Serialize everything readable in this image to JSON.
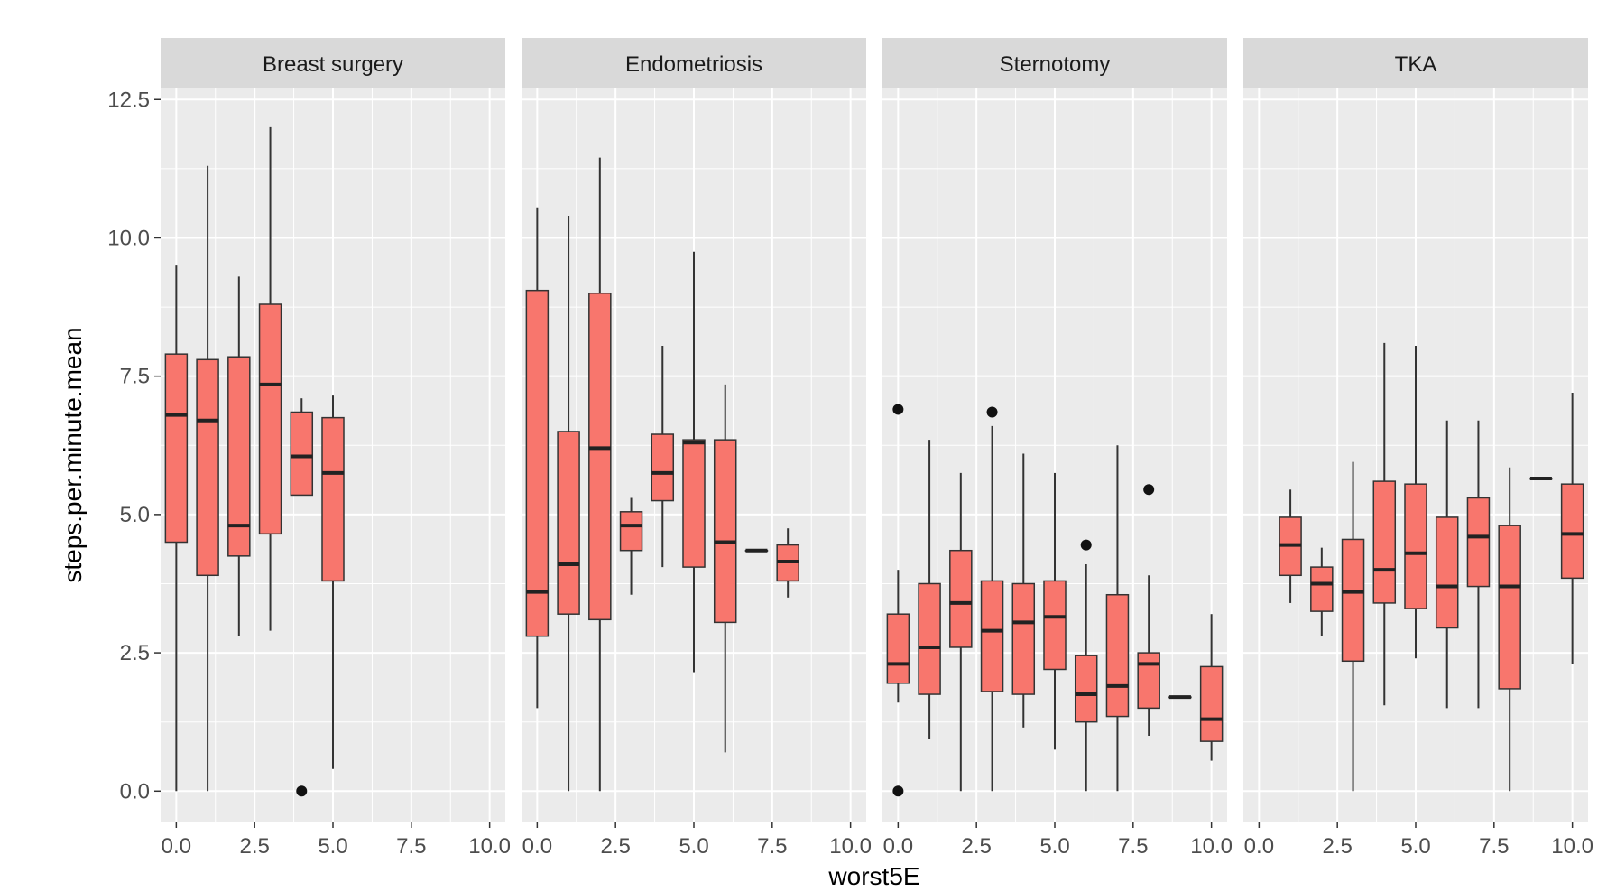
{
  "chart_data": {
    "type": "boxplot",
    "xlabel": "worst5E",
    "ylabel": "steps.per.minute.mean",
    "xlim": [
      -0.5,
      10.5
    ],
    "ylim": [
      -0.55,
      12.7
    ],
    "x_ticks": [
      0,
      2.5,
      5,
      7.5,
      10
    ],
    "x_tick_labels": [
      "0.0",
      "2.5",
      "5.0",
      "7.5",
      "10.0"
    ],
    "y_ticks": [
      0,
      2.5,
      5,
      7.5,
      10,
      12.5
    ],
    "y_tick_labels": [
      "0.0",
      "2.5",
      "5.0",
      "7.5",
      "10.0",
      "12.5"
    ],
    "grid": true,
    "colors": {
      "box_fill": "#f8766d",
      "box_stroke": "#333333",
      "panel_bg": "#ebebeb",
      "strip_bg": "#d9d9d9",
      "grid": "#ffffff"
    },
    "panels": [
      {
        "name": "Breast surgery",
        "boxes": [
          {
            "x": 0,
            "low": 0.0,
            "q1": 4.5,
            "median": 6.8,
            "q3": 7.9,
            "high": 9.5,
            "outliers": []
          },
          {
            "x": 1,
            "low": 0.0,
            "q1": 3.9,
            "median": 6.7,
            "q3": 7.8,
            "high": 11.3,
            "outliers": []
          },
          {
            "x": 2,
            "low": 2.8,
            "q1": 4.25,
            "median": 4.8,
            "q3": 7.85,
            "high": 9.3,
            "outliers": []
          },
          {
            "x": 3,
            "low": 2.9,
            "q1": 4.65,
            "median": 7.35,
            "q3": 8.8,
            "high": 12.0,
            "outliers": []
          },
          {
            "x": 4,
            "low": 5.35,
            "q1": 5.35,
            "median": 6.05,
            "q3": 6.85,
            "high": 7.1,
            "outliers": [
              0.0
            ]
          },
          {
            "x": 5,
            "low": 0.4,
            "q1": 3.8,
            "median": 5.75,
            "q3": 6.75,
            "high": 7.15,
            "outliers": []
          }
        ]
      },
      {
        "name": "Endometriosis",
        "boxes": [
          {
            "x": 0,
            "low": 1.5,
            "q1": 2.8,
            "median": 3.6,
            "q3": 9.05,
            "high": 10.55,
            "outliers": []
          },
          {
            "x": 1,
            "low": 0.0,
            "q1": 3.2,
            "median": 4.1,
            "q3": 6.5,
            "high": 10.4,
            "outliers": []
          },
          {
            "x": 2,
            "low": 0.0,
            "q1": 3.1,
            "median": 6.2,
            "q3": 9.0,
            "high": 11.45,
            "outliers": []
          },
          {
            "x": 3,
            "low": 3.55,
            "q1": 4.35,
            "median": 4.8,
            "q3": 5.05,
            "high": 5.3,
            "outliers": []
          },
          {
            "x": 4,
            "low": 4.05,
            "q1": 5.25,
            "median": 5.75,
            "q3": 6.45,
            "high": 8.05,
            "outliers": []
          },
          {
            "x": 5,
            "low": 2.15,
            "q1": 4.05,
            "median": 6.3,
            "q3": 6.35,
            "high": 9.75,
            "outliers": []
          },
          {
            "x": 6,
            "low": 0.7,
            "q1": 3.05,
            "median": 4.5,
            "q3": 6.35,
            "high": 7.35,
            "outliers": []
          },
          {
            "x": 7,
            "low": 4.35,
            "q1": 4.35,
            "median": 4.35,
            "q3": 4.35,
            "high": 4.35,
            "outliers": []
          },
          {
            "x": 8,
            "low": 3.5,
            "q1": 3.8,
            "median": 4.15,
            "q3": 4.45,
            "high": 4.75,
            "outliers": []
          }
        ]
      },
      {
        "name": "Sternotomy",
        "boxes": [
          {
            "x": 0,
            "low": 1.6,
            "q1": 1.95,
            "median": 2.3,
            "q3": 3.2,
            "high": 4.0,
            "outliers": [
              6.9,
              0.0
            ]
          },
          {
            "x": 1,
            "low": 0.95,
            "q1": 1.75,
            "median": 2.6,
            "q3": 3.75,
            "high": 6.35,
            "outliers": []
          },
          {
            "x": 2,
            "low": 0.0,
            "q1": 2.6,
            "median": 3.4,
            "q3": 4.35,
            "high": 5.75,
            "outliers": []
          },
          {
            "x": 3,
            "low": 0.0,
            "q1": 1.8,
            "median": 2.9,
            "q3": 3.8,
            "high": 6.6,
            "outliers": [
              6.85
            ]
          },
          {
            "x": 4,
            "low": 1.15,
            "q1": 1.75,
            "median": 3.05,
            "q3": 3.75,
            "high": 6.1,
            "outliers": []
          },
          {
            "x": 5,
            "low": 0.75,
            "q1": 2.2,
            "median": 3.15,
            "q3": 3.8,
            "high": 5.75,
            "outliers": []
          },
          {
            "x": 6,
            "low": 0.0,
            "q1": 1.25,
            "median": 1.75,
            "q3": 2.45,
            "high": 4.1,
            "outliers": [
              4.45
            ]
          },
          {
            "x": 7,
            "low": 0.0,
            "q1": 1.35,
            "median": 1.9,
            "q3": 3.55,
            "high": 6.25,
            "outliers": []
          },
          {
            "x": 8,
            "low": 1.0,
            "q1": 1.5,
            "median": 2.3,
            "q3": 2.5,
            "high": 3.9,
            "outliers": [
              5.45
            ]
          },
          {
            "x": 9,
            "low": 1.7,
            "q1": 1.7,
            "median": 1.7,
            "q3": 1.7,
            "high": 1.7,
            "outliers": []
          },
          {
            "x": 10,
            "low": 0.55,
            "q1": 0.9,
            "median": 1.3,
            "q3": 2.25,
            "high": 3.2,
            "outliers": []
          }
        ]
      },
      {
        "name": "TKA",
        "boxes": [
          {
            "x": 1,
            "low": 3.4,
            "q1": 3.9,
            "median": 4.45,
            "q3": 4.95,
            "high": 5.45,
            "outliers": []
          },
          {
            "x": 2,
            "low": 2.8,
            "q1": 3.25,
            "median": 3.75,
            "q3": 4.05,
            "high": 4.4,
            "outliers": []
          },
          {
            "x": 3,
            "low": 0.0,
            "q1": 2.35,
            "median": 3.6,
            "q3": 4.55,
            "high": 5.95,
            "outliers": []
          },
          {
            "x": 4,
            "low": 1.55,
            "q1": 3.4,
            "median": 4.0,
            "q3": 5.6,
            "high": 8.1,
            "outliers": []
          },
          {
            "x": 5,
            "low": 2.4,
            "q1": 3.3,
            "median": 4.3,
            "q3": 5.55,
            "high": 8.05,
            "outliers": []
          },
          {
            "x": 6,
            "low": 1.5,
            "q1": 2.95,
            "median": 3.7,
            "q3": 4.95,
            "high": 6.7,
            "outliers": []
          },
          {
            "x": 7,
            "low": 1.5,
            "q1": 3.7,
            "median": 4.6,
            "q3": 5.3,
            "high": 6.7,
            "outliers": []
          },
          {
            "x": 8,
            "low": 0.0,
            "q1": 1.85,
            "median": 3.7,
            "q3": 4.8,
            "high": 5.85,
            "outliers": []
          },
          {
            "x": 9,
            "low": 5.65,
            "q1": 5.65,
            "median": 5.65,
            "q3": 5.65,
            "high": 5.65,
            "outliers": []
          },
          {
            "x": 10,
            "low": 2.3,
            "q1": 3.85,
            "median": 4.65,
            "q3": 5.55,
            "high": 7.2,
            "outliers": []
          }
        ]
      }
    ]
  }
}
